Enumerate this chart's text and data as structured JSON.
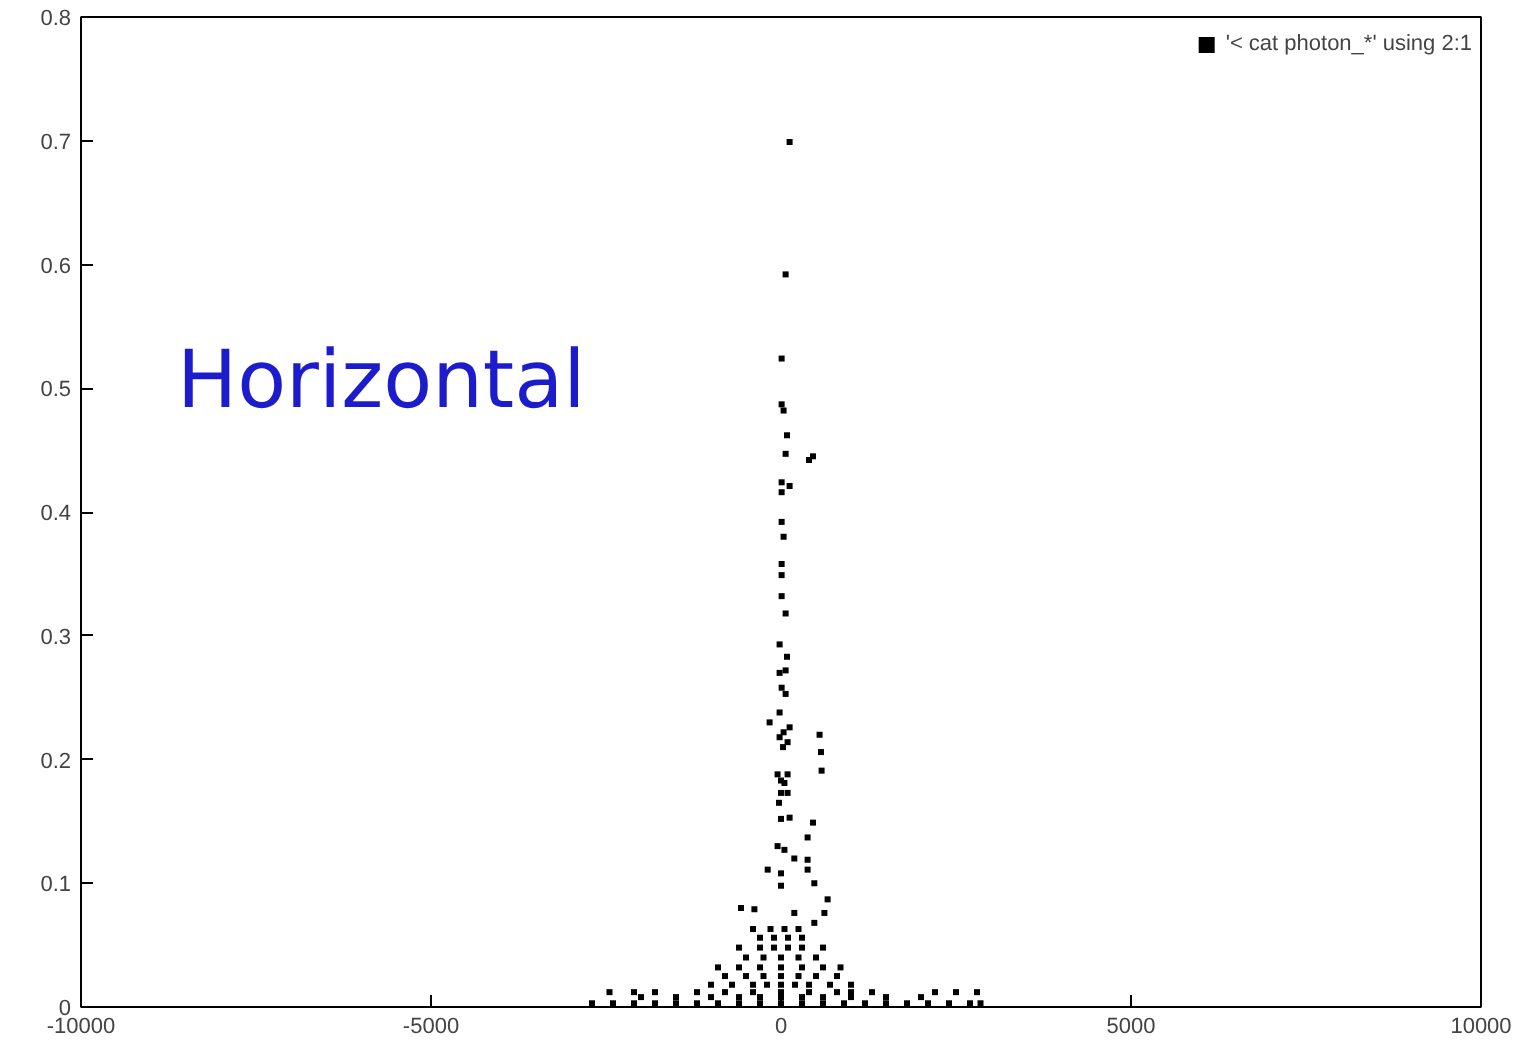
{
  "chart_data": {
    "type": "scatter",
    "annotations": [
      "Horizontal"
    ],
    "xlim": [
      -10000,
      10000
    ],
    "xticks": [
      -10000,
      -5000,
      0,
      5000,
      10000
    ],
    "ylim": [
      0,
      0.8
    ],
    "yticks": [
      0,
      0.1,
      0.2,
      0.3,
      0.4,
      0.5,
      0.6,
      0.7,
      0.8
    ],
    "grid": false,
    "legend": "top right",
    "marker": "square",
    "series": [
      {
        "name": "'< cat photon_*' using 2:1",
        "color": "#000000",
        "x": [
          123,
          66,
          9,
          9,
          37,
          86,
          66,
          457,
          400,
          9,
          123,
          9,
          9,
          37,
          9,
          9,
          9,
          66,
          -20,
          86,
          -20,
          66,
          9,
          66,
          -20,
          -163,
          123,
          37,
          -20,
          551,
          94,
          29,
          571,
          580,
          -49,
          94,
          0,
          49,
          0,
          94,
          -29,
          123,
          457,
          0,
          380,
          -49,
          49,
          190,
          380,
          -190,
          0,
          380,
          476,
          0,
          666,
          -380,
          190,
          620,
          -571,
          476,
          -2700,
          -2400,
          -2100,
          -1800,
          -1500,
          -1200,
          -900,
          -600,
          -300,
          0,
          300,
          600,
          900,
          1200,
          1500,
          1800,
          2100,
          2400,
          2700,
          2850,
          -2000,
          -1500,
          -1000,
          -600,
          -300,
          0,
          300,
          600,
          1000,
          1500,
          2000,
          -2450,
          -2100,
          -1800,
          -1200,
          -800,
          -400,
          0,
          400,
          800,
          1000,
          1300,
          2200,
          2500,
          2800,
          -1000,
          -700,
          -400,
          -200,
          0,
          200,
          400,
          700,
          1000,
          -800,
          -500,
          -250,
          0,
          250,
          500,
          800,
          -900,
          -600,
          -300,
          0,
          300,
          600,
          850,
          -500,
          -250,
          0,
          250,
          500,
          -600,
          -300,
          -100,
          100,
          300,
          600,
          -300,
          -100,
          100,
          300,
          -400,
          -150,
          50,
          250
        ],
        "values": [
          0.699,
          0.592,
          0.524,
          0.487,
          0.482,
          0.462,
          0.447,
          0.445,
          0.442,
          0.424,
          0.421,
          0.416,
          0.392,
          0.38,
          0.358,
          0.349,
          0.332,
          0.318,
          0.293,
          0.283,
          0.27,
          0.272,
          0.258,
          0.253,
          0.238,
          0.23,
          0.226,
          0.222,
          0.218,
          0.22,
          0.214,
          0.21,
          0.206,
          0.191,
          0.188,
          0.188,
          0.183,
          0.181,
          0.173,
          0.173,
          0.165,
          0.153,
          0.149,
          0.152,
          0.137,
          0.13,
          0.127,
          0.12,
          0.119,
          0.111,
          0.108,
          0.111,
          0.1,
          0.098,
          0.087,
          0.079,
          0.076,
          0.076,
          0.08,
          0.068,
          0.003,
          0.003,
          0.003,
          0.003,
          0.003,
          0.003,
          0.003,
          0.003,
          0.003,
          0.003,
          0.003,
          0.003,
          0.003,
          0.003,
          0.003,
          0.003,
          0.003,
          0.003,
          0.003,
          0.003,
          0.008,
          0.008,
          0.008,
          0.008,
          0.008,
          0.008,
          0.008,
          0.008,
          0.008,
          0.008,
          0.008,
          0.012,
          0.012,
          0.012,
          0.012,
          0.012,
          0.012,
          0.012,
          0.012,
          0.012,
          0.012,
          0.012,
          0.012,
          0.012,
          0.012,
          0.018,
          0.018,
          0.018,
          0.018,
          0.018,
          0.018,
          0.018,
          0.018,
          0.018,
          0.025,
          0.025,
          0.025,
          0.025,
          0.025,
          0.025,
          0.025,
          0.032,
          0.032,
          0.032,
          0.032,
          0.032,
          0.032,
          0.032,
          0.04,
          0.04,
          0.04,
          0.04,
          0.04,
          0.048,
          0.048,
          0.048,
          0.048,
          0.048,
          0.048,
          0.056,
          0.056,
          0.056,
          0.056,
          0.063,
          0.063,
          0.063,
          0.063
        ]
      }
    ]
  }
}
